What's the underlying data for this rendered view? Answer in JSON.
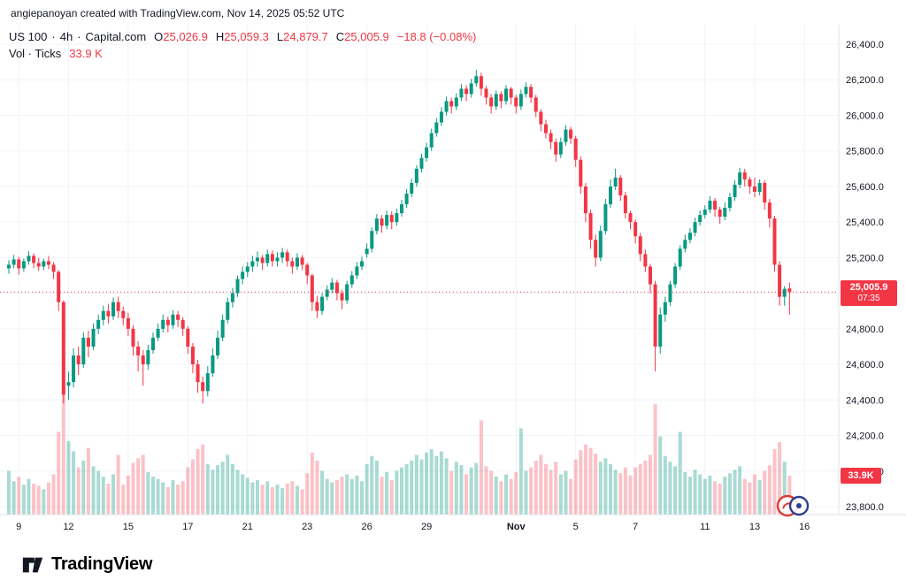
{
  "attribution": {
    "text": "angiepanoyan created with TradingView.com, Nov 14, 2025 05:52 UTC"
  },
  "legend": {
    "symbol": "US 100",
    "separator": "·",
    "interval": "4h",
    "exchange": "Capital.com",
    "o_label": "O",
    "o": "25,026.9",
    "h_label": "H",
    "h": "25,059.3",
    "l_label": "L",
    "l": "24,879.7",
    "c_label": "C",
    "c": "25,005.9",
    "change": "−18.8 (−0.08%)",
    "vol_label": "Vol · Ticks",
    "vol_value": "33.9 K"
  },
  "last_price_badge": {
    "price": "25,005.9",
    "countdown": "07:35"
  },
  "volume_badge": {
    "value": "33.9K"
  },
  "footer": {
    "brand": "TradingView"
  },
  "colors": {
    "up": "#089981",
    "down": "#F23645",
    "vol_up": "rgba(8,153,129,0.35)",
    "vol_down": "rgba(242,54,69,0.30)",
    "grid": "#F0F3FA",
    "axis_line": "#E0E3EB",
    "axis_text": "#131722",
    "badge_bg": "#F23645"
  },
  "chart_data": {
    "type": "candlestick",
    "title": "US 100 · 4h · Capital.com",
    "interval": "4h",
    "grid": true,
    "ylim": [
      23800,
      26400
    ],
    "grid_step": 200,
    "last_price": 25005.9,
    "last_candle_countdown": "07:35",
    "price_axis_labels": [
      "26,400.0",
      "26,200.0",
      "26,000.0",
      "25,800.0",
      "25,600.0",
      "25,400.0",
      "25,200.0",
      "25,000.0",
      "24,800.0",
      "24,600.0",
      "24,400.0",
      "24,200.0",
      "24,000.0",
      "23,800.0"
    ],
    "time_ticks": [
      {
        "i": 2,
        "label": "9"
      },
      {
        "i": 12,
        "label": "12"
      },
      {
        "i": 24,
        "label": "15"
      },
      {
        "i": 36,
        "label": "17"
      },
      {
        "i": 48,
        "label": "21"
      },
      {
        "i": 60,
        "label": "23"
      },
      {
        "i": 72,
        "label": "26"
      },
      {
        "i": 84,
        "label": "29"
      },
      {
        "i": 102,
        "label": "Nov",
        "bold": true
      },
      {
        "i": 114,
        "label": "5"
      },
      {
        "i": 126,
        "label": "7"
      },
      {
        "i": 140,
        "label": "11"
      },
      {
        "i": 150,
        "label": "13"
      },
      {
        "i": 160,
        "label": "16"
      }
    ],
    "volume_unit": "K",
    "candles": [
      [
        25140,
        25185,
        25110,
        25160,
        38
      ],
      [
        25160,
        25215,
        25140,
        25190,
        29
      ],
      [
        25190,
        25205,
        25105,
        25140,
        33
      ],
      [
        25140,
        25195,
        25120,
        25180,
        26
      ],
      [
        25180,
        25235,
        25160,
        25210,
        31
      ],
      [
        25210,
        25225,
        25140,
        25170,
        27
      ],
      [
        25170,
        25200,
        25125,
        25150,
        25
      ],
      [
        25150,
        25195,
        25130,
        25180,
        22
      ],
      [
        25180,
        25210,
        25135,
        25160,
        28
      ],
      [
        25160,
        25175,
        25080,
        25120,
        35
      ],
      [
        25120,
        25130,
        24900,
        24950,
        72
      ],
      [
        24950,
        24960,
        24380,
        24430,
        112
      ],
      [
        24480,
        24560,
        24400,
        24500,
        64
      ],
      [
        24500,
        24690,
        24470,
        24650,
        55
      ],
      [
        24650,
        24700,
        24540,
        24600,
        41
      ],
      [
        24600,
        24780,
        24580,
        24750,
        47
      ],
      [
        24750,
        24790,
        24640,
        24700,
        58
      ],
      [
        24700,
        24830,
        24680,
        24800,
        42
      ],
      [
        24800,
        24880,
        24770,
        24850,
        38
      ],
      [
        24850,
        24930,
        24820,
        24900,
        33
      ],
      [
        24900,
        24940,
        24830,
        24870,
        27
      ],
      [
        24870,
        24975,
        24850,
        24950,
        35
      ],
      [
        24950,
        24980,
        24860,
        24900,
        52
      ],
      [
        24900,
        24925,
        24820,
        24860,
        26
      ],
      [
        24860,
        24890,
        24760,
        24800,
        34
      ],
      [
        24800,
        24820,
        24650,
        24700,
        45
      ],
      [
        24700,
        24730,
        24560,
        24650,
        49
      ],
      [
        24650,
        24680,
        24480,
        24600,
        52
      ],
      [
        24600,
        24710,
        24570,
        24680,
        37
      ],
      [
        24680,
        24780,
        24660,
        24750,
        33
      ],
      [
        24750,
        24830,
        24730,
        24800,
        31
      ],
      [
        24800,
        24880,
        24780,
        24850,
        28
      ],
      [
        24850,
        24870,
        24780,
        24820,
        24
      ],
      [
        24820,
        24905,
        24800,
        24880,
        30
      ],
      [
        24880,
        24900,
        24810,
        24850,
        26
      ],
      [
        24850,
        24865,
        24760,
        24800,
        29
      ],
      [
        24800,
        24815,
        24660,
        24700,
        41
      ],
      [
        24700,
        24720,
        24550,
        24600,
        48
      ],
      [
        24600,
        24625,
        24440,
        24500,
        57
      ],
      [
        24500,
        24530,
        24380,
        24450,
        61
      ],
      [
        24450,
        24590,
        24420,
        24550,
        44
      ],
      [
        24550,
        24690,
        24530,
        24650,
        39
      ],
      [
        24650,
        24790,
        24630,
        24750,
        43
      ],
      [
        24750,
        24880,
        24730,
        24850,
        46
      ],
      [
        24850,
        24975,
        24830,
        24950,
        52
      ],
      [
        24950,
        25030,
        24920,
        25000,
        44
      ],
      [
        25000,
        25100,
        24980,
        25080,
        39
      ],
      [
        25080,
        25150,
        25050,
        25120,
        35
      ],
      [
        25120,
        25175,
        25090,
        25150,
        32
      ],
      [
        25150,
        25210,
        25120,
        25180,
        28
      ],
      [
        25180,
        25235,
        25150,
        25200,
        30
      ],
      [
        25200,
        25215,
        25130,
        25170,
        26
      ],
      [
        25170,
        25245,
        25150,
        25220,
        29
      ],
      [
        25220,
        25240,
        25150,
        25180,
        24
      ],
      [
        25180,
        25230,
        25150,
        25200,
        26
      ],
      [
        25200,
        25255,
        25170,
        25230,
        23
      ],
      [
        25230,
        25245,
        25150,
        25180,
        27
      ],
      [
        25180,
        25200,
        25110,
        25150,
        29
      ],
      [
        25150,
        25225,
        25130,
        25200,
        25
      ],
      [
        25200,
        25215,
        25130,
        25160,
        22
      ],
      [
        25160,
        25170,
        25050,
        25100,
        36
      ],
      [
        25100,
        25110,
        24900,
        24950,
        54
      ],
      [
        24950,
        24985,
        24860,
        24900,
        47
      ],
      [
        24900,
        25000,
        24880,
        24980,
        38
      ],
      [
        24980,
        25045,
        24960,
        25020,
        31
      ],
      [
        25020,
        25085,
        25000,
        25060,
        28
      ],
      [
        25060,
        25075,
        24960,
        25000,
        30
      ],
      [
        25000,
        25020,
        24910,
        24960,
        33
      ],
      [
        24960,
        25070,
        24940,
        25050,
        35
      ],
      [
        25050,
        25125,
        25030,
        25100,
        31
      ],
      [
        25100,
        25175,
        25080,
        25150,
        34
      ],
      [
        25150,
        25205,
        25130,
        25180,
        29
      ],
      [
        25220,
        25280,
        25200,
        25250,
        44
      ],
      [
        25250,
        25370,
        25230,
        25350,
        51
      ],
      [
        25350,
        25445,
        25330,
        25420,
        47
      ],
      [
        25420,
        25440,
        25340,
        25380,
        33
      ],
      [
        25380,
        25465,
        25360,
        25440,
        37
      ],
      [
        25440,
        25460,
        25360,
        25400,
        30
      ],
      [
        25400,
        25475,
        25380,
        25450,
        38
      ],
      [
        25450,
        25525,
        25430,
        25500,
        41
      ],
      [
        25500,
        25585,
        25480,
        25560,
        44
      ],
      [
        25560,
        25645,
        25540,
        25620,
        47
      ],
      [
        25620,
        25720,
        25600,
        25700,
        52
      ],
      [
        25700,
        25785,
        25680,
        25760,
        48
      ],
      [
        25760,
        25845,
        25740,
        25820,
        54
      ],
      [
        25820,
        25925,
        25800,
        25900,
        57
      ],
      [
        25900,
        25985,
        25880,
        25960,
        51
      ],
      [
        25960,
        26045,
        25940,
        26020,
        55
      ],
      [
        26020,
        26105,
        26000,
        26080,
        49
      ],
      [
        26080,
        26100,
        26010,
        26050,
        38
      ],
      [
        26050,
        26125,
        26030,
        26100,
        46
      ],
      [
        26100,
        26175,
        26080,
        26150,
        43
      ],
      [
        26150,
        26170,
        26080,
        26120,
        35
      ],
      [
        26120,
        26205,
        26100,
        26180,
        41
      ],
      [
        26180,
        26255,
        26160,
        26220,
        45
      ],
      [
        26220,
        26240,
        26110,
        26150,
        82
      ],
      [
        26150,
        26165,
        26060,
        26100,
        42
      ],
      [
        26100,
        26120,
        26010,
        26050,
        38
      ],
      [
        26050,
        26140,
        26030,
        26120,
        33
      ],
      [
        26120,
        26135,
        26040,
        26080,
        29
      ],
      [
        26080,
        26170,
        26060,
        26150,
        35
      ],
      [
        26150,
        26160,
        26060,
        26100,
        31
      ],
      [
        26100,
        26115,
        26010,
        26050,
        37
      ],
      [
        26050,
        26145,
        26030,
        26120,
        75
      ],
      [
        26120,
        26185,
        26100,
        26160,
        38
      ],
      [
        26160,
        26175,
        26070,
        26100,
        41
      ],
      [
        26100,
        26115,
        25990,
        26020,
        47
      ],
      [
        26020,
        26035,
        25910,
        25950,
        52
      ],
      [
        25950,
        25975,
        25870,
        25900,
        44
      ],
      [
        25900,
        25920,
        25810,
        25850,
        39
      ],
      [
        25850,
        25870,
        25740,
        25780,
        46
      ],
      [
        25780,
        25875,
        25760,
        25850,
        35
      ],
      [
        25850,
        25945,
        25830,
        25920,
        38
      ],
      [
        25920,
        25935,
        25840,
        25870,
        31
      ],
      [
        25870,
        25885,
        25710,
        25750,
        48
      ],
      [
        25750,
        25770,
        25560,
        25600,
        56
      ],
      [
        25600,
        25620,
        25400,
        25450,
        61
      ],
      [
        25450,
        25470,
        25250,
        25300,
        58
      ],
      [
        25300,
        25330,
        25150,
        25200,
        53
      ],
      [
        25200,
        25380,
        25180,
        25350,
        46
      ],
      [
        25350,
        25530,
        25330,
        25500,
        49
      ],
      [
        25500,
        25640,
        25480,
        25600,
        44
      ],
      [
        25600,
        25700,
        25580,
        25650,
        39
      ],
      [
        25650,
        25665,
        25520,
        25550,
        36
      ],
      [
        25550,
        25570,
        25420,
        25450,
        41
      ],
      [
        25450,
        25465,
        25360,
        25400,
        34
      ],
      [
        25400,
        25415,
        25280,
        25320,
        41
      ],
      [
        25320,
        25340,
        25180,
        25220,
        44
      ],
      [
        25220,
        25245,
        25120,
        25150,
        47
      ],
      [
        25150,
        25165,
        25000,
        25050,
        52
      ],
      [
        25050,
        25070,
        24560,
        24700,
        96
      ],
      [
        24700,
        24920,
        24660,
        24880,
        68
      ],
      [
        24880,
        24980,
        24840,
        24950,
        51
      ],
      [
        24950,
        25070,
        24930,
        25050,
        46
      ],
      [
        25050,
        25170,
        25030,
        25150,
        42
      ],
      [
        25150,
        25270,
        25130,
        25250,
        72
      ],
      [
        25250,
        25330,
        25230,
        25300,
        37
      ],
      [
        25300,
        25365,
        25280,
        25340,
        33
      ],
      [
        25340,
        25425,
        25320,
        25400,
        39
      ],
      [
        25400,
        25465,
        25380,
        25440,
        35
      ],
      [
        25440,
        25495,
        25420,
        25470,
        31
      ],
      [
        25470,
        25545,
        25450,
        25520,
        34
      ],
      [
        25520,
        25535,
        25430,
        25470,
        29
      ],
      [
        25470,
        25485,
        25390,
        25430,
        27
      ],
      [
        25430,
        25510,
        25410,
        25480,
        33
      ],
      [
        25480,
        25565,
        25460,
        25540,
        36
      ],
      [
        25540,
        25635,
        25520,
        25610,
        39
      ],
      [
        25610,
        25705,
        25590,
        25680,
        42
      ],
      [
        25680,
        25700,
        25600,
        25640,
        31
      ],
      [
        25640,
        25655,
        25560,
        25600,
        28
      ],
      [
        25600,
        25650,
        25540,
        25570,
        35
      ],
      [
        25570,
        25640,
        25550,
        25620,
        30
      ],
      [
        25620,
        25635,
        25470,
        25510,
        38
      ],
      [
        25510,
        25530,
        25370,
        25420,
        43
      ],
      [
        25420,
        25435,
        25120,
        25160,
        57
      ],
      [
        25160,
        25180,
        24930,
        24980,
        63
      ],
      [
        24980,
        25040,
        24930,
        25024.7,
        46
      ],
      [
        25026.9,
        25059.3,
        24879.7,
        25005.9,
        33.9
      ]
    ]
  }
}
